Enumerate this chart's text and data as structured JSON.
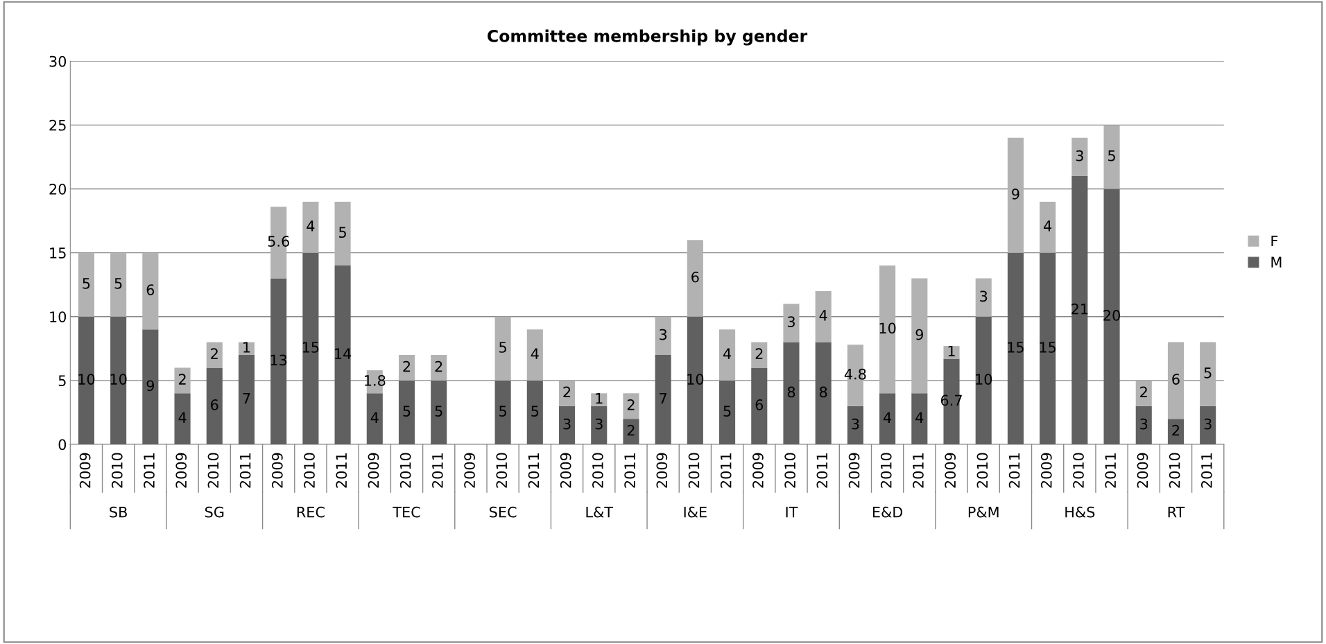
{
  "chart_data": {
    "type": "bar",
    "title": "Committee membership by gender",
    "stacked": true,
    "data_labels": true,
    "grid": "y",
    "legend": "right",
    "categories": [
      "2009",
      "2010",
      "2011",
      "2009",
      "2010",
      "2011",
      "2009",
      "2010",
      "2011",
      "2009",
      "2010",
      "2011",
      "2009",
      "2010",
      "2011",
      "2009",
      "2010",
      "2011",
      "2009",
      "2010",
      "2011",
      "2009",
      "2010",
      "2011",
      "2009",
      "2010",
      "2011",
      "2009",
      "2010",
      "2011",
      "2009",
      "2010",
      "2011",
      "2009",
      "2010",
      "2011"
    ],
    "annotations": [
      "SB",
      "SG",
      "REC",
      "TEC",
      "SEC",
      "L&T",
      "I&E",
      "IT",
      "E&D",
      "P&M",
      "H&S",
      "RT"
    ],
    "series": [
      {
        "name": "M",
        "color": "#606060",
        "values": [
          10,
          10,
          9,
          4,
          6,
          7,
          13,
          15,
          14,
          4,
          5,
          5,
          null,
          5,
          5,
          3,
          3,
          2,
          7,
          10,
          5,
          6,
          8,
          8,
          3,
          4,
          4,
          6.7,
          10,
          15,
          15,
          21,
          20,
          3,
          2,
          3
        ]
      },
      {
        "name": "F",
        "color": "#b2b2b2",
        "values": [
          5,
          5,
          6,
          2,
          2,
          1,
          5.6,
          4,
          5,
          1.8,
          2,
          2,
          null,
          5,
          4,
          2,
          1,
          2,
          3,
          6,
          4,
          2,
          3,
          4,
          4.8,
          10,
          9,
          1,
          3,
          9,
          4,
          3,
          5,
          2,
          6,
          5
        ]
      }
    ],
    "ylim": [
      0,
      30
    ],
    "yticks": [
      0,
      5,
      10,
      15,
      20,
      25,
      30
    ]
  }
}
